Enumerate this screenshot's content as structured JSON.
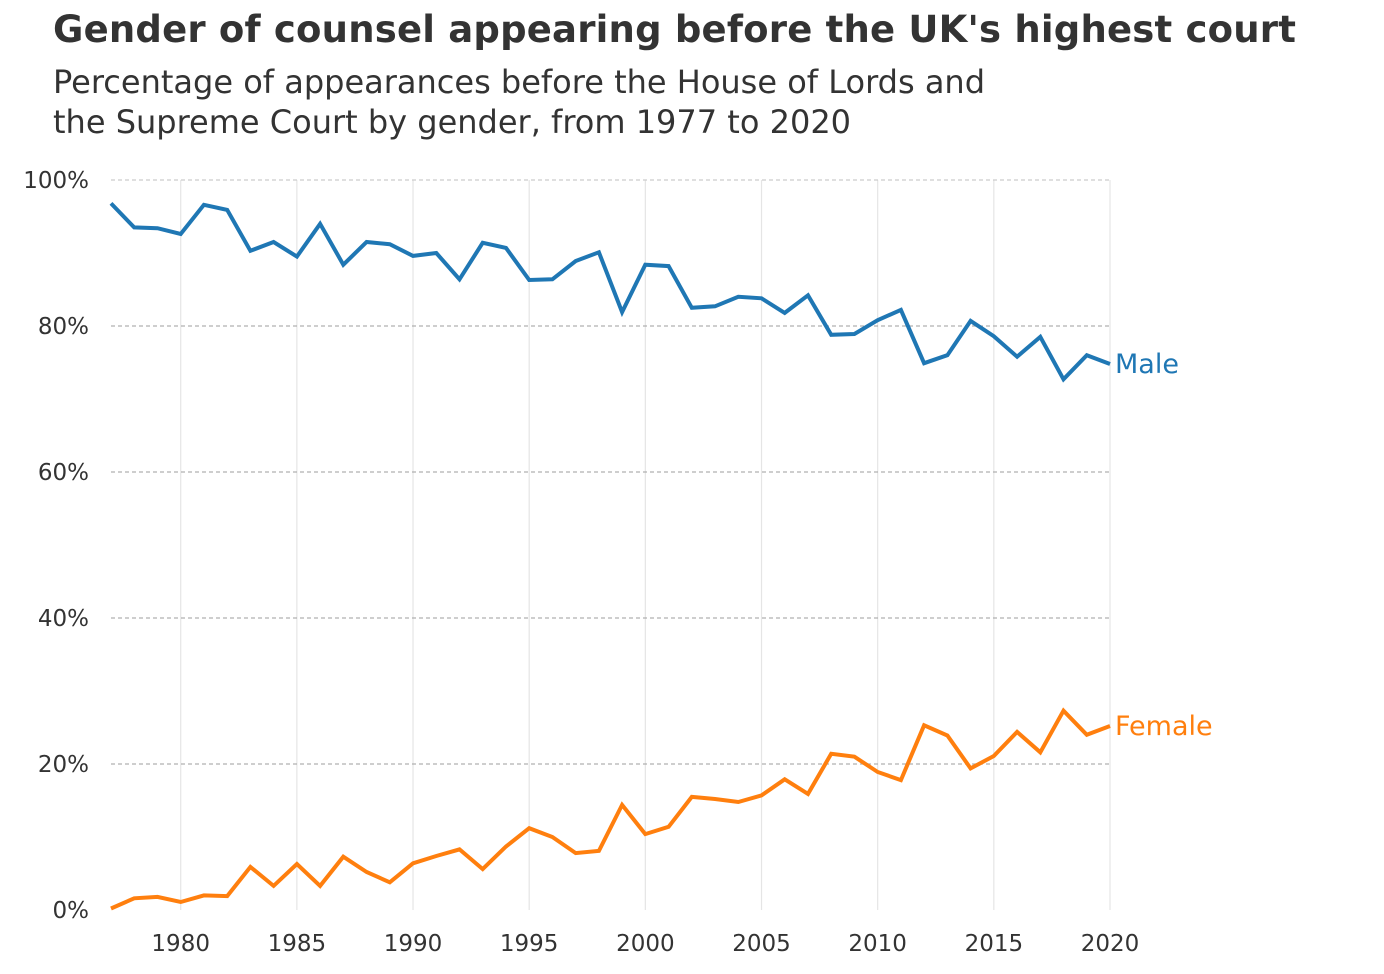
{
  "chart_data": {
    "type": "line",
    "title": "Gender of counsel appearing before the UK's highest court",
    "subtitle_lines": [
      "Percentage of appearances before the House of Lords and",
      "the Supreme Court by gender, from 1977 to 2020"
    ],
    "xlabel": "",
    "ylabel": "",
    "xlim": [
      1977,
      2020
    ],
    "ylim": [
      0,
      100
    ],
    "x_ticks": [
      1980,
      1985,
      1990,
      1995,
      2000,
      2005,
      2010,
      2015,
      2020
    ],
    "x_tick_labels": [
      "1980",
      "1985",
      "1990",
      "1995",
      "2000",
      "2005",
      "2010",
      "2015",
      "2020"
    ],
    "y_ticks": [
      0,
      20,
      40,
      60,
      80,
      100
    ],
    "y_tick_labels": [
      "0%",
      "20%",
      "40%",
      "60%",
      "80%",
      "100%"
    ],
    "grid": true,
    "legend": "inline-end-labels",
    "x": [
      1977,
      1978,
      1979,
      1980,
      1981,
      1982,
      1983,
      1984,
      1985,
      1986,
      1987,
      1988,
      1989,
      1990,
      1991,
      1992,
      1993,
      1994,
      1995,
      1996,
      1997,
      1998,
      1999,
      2000,
      2001,
      2002,
      2003,
      2004,
      2005,
      2006,
      2007,
      2008,
      2009,
      2010,
      2011,
      2012,
      2013,
      2014,
      2015,
      2016,
      2017,
      2018,
      2019,
      2020
    ],
    "series": [
      {
        "name": "Male",
        "color": "#1f77b4",
        "values": [
          96.8,
          93.5,
          93.4,
          92.6,
          96.6,
          95.9,
          90.3,
          91.5,
          89.5,
          94.0,
          88.4,
          91.5,
          91.2,
          89.6,
          90.0,
          86.4,
          91.4,
          90.7,
          86.3,
          86.4,
          88.9,
          90.1,
          81.9,
          88.4,
          88.2,
          82.5,
          82.7,
          84.0,
          83.8,
          81.8,
          84.2,
          78.8,
          78.9,
          80.8,
          82.2,
          74.9,
          76.0,
          80.7,
          78.6,
          75.8,
          78.5,
          72.7,
          76.0,
          74.8
        ]
      },
      {
        "name": "Female",
        "color": "#ff7f0e",
        "values": [
          0.2,
          1.6,
          1.8,
          1.1,
          2.0,
          1.9,
          5.9,
          3.3,
          6.3,
          3.3,
          7.3,
          5.2,
          3.8,
          6.4,
          7.4,
          8.3,
          5.6,
          8.7,
          11.2,
          10.0,
          7.8,
          8.1,
          14.4,
          10.4,
          11.4,
          15.5,
          15.2,
          14.8,
          15.7,
          17.9,
          15.9,
          21.4,
          21.0,
          18.9,
          17.8,
          25.3,
          23.9,
          19.4,
          21.1,
          24.4,
          21.6,
          27.3,
          24.0,
          25.2
        ]
      }
    ],
    "colors": {
      "text": "#333333",
      "grid_major": "#b0b0b0",
      "grid_vertical": "#e5e5e5"
    }
  }
}
